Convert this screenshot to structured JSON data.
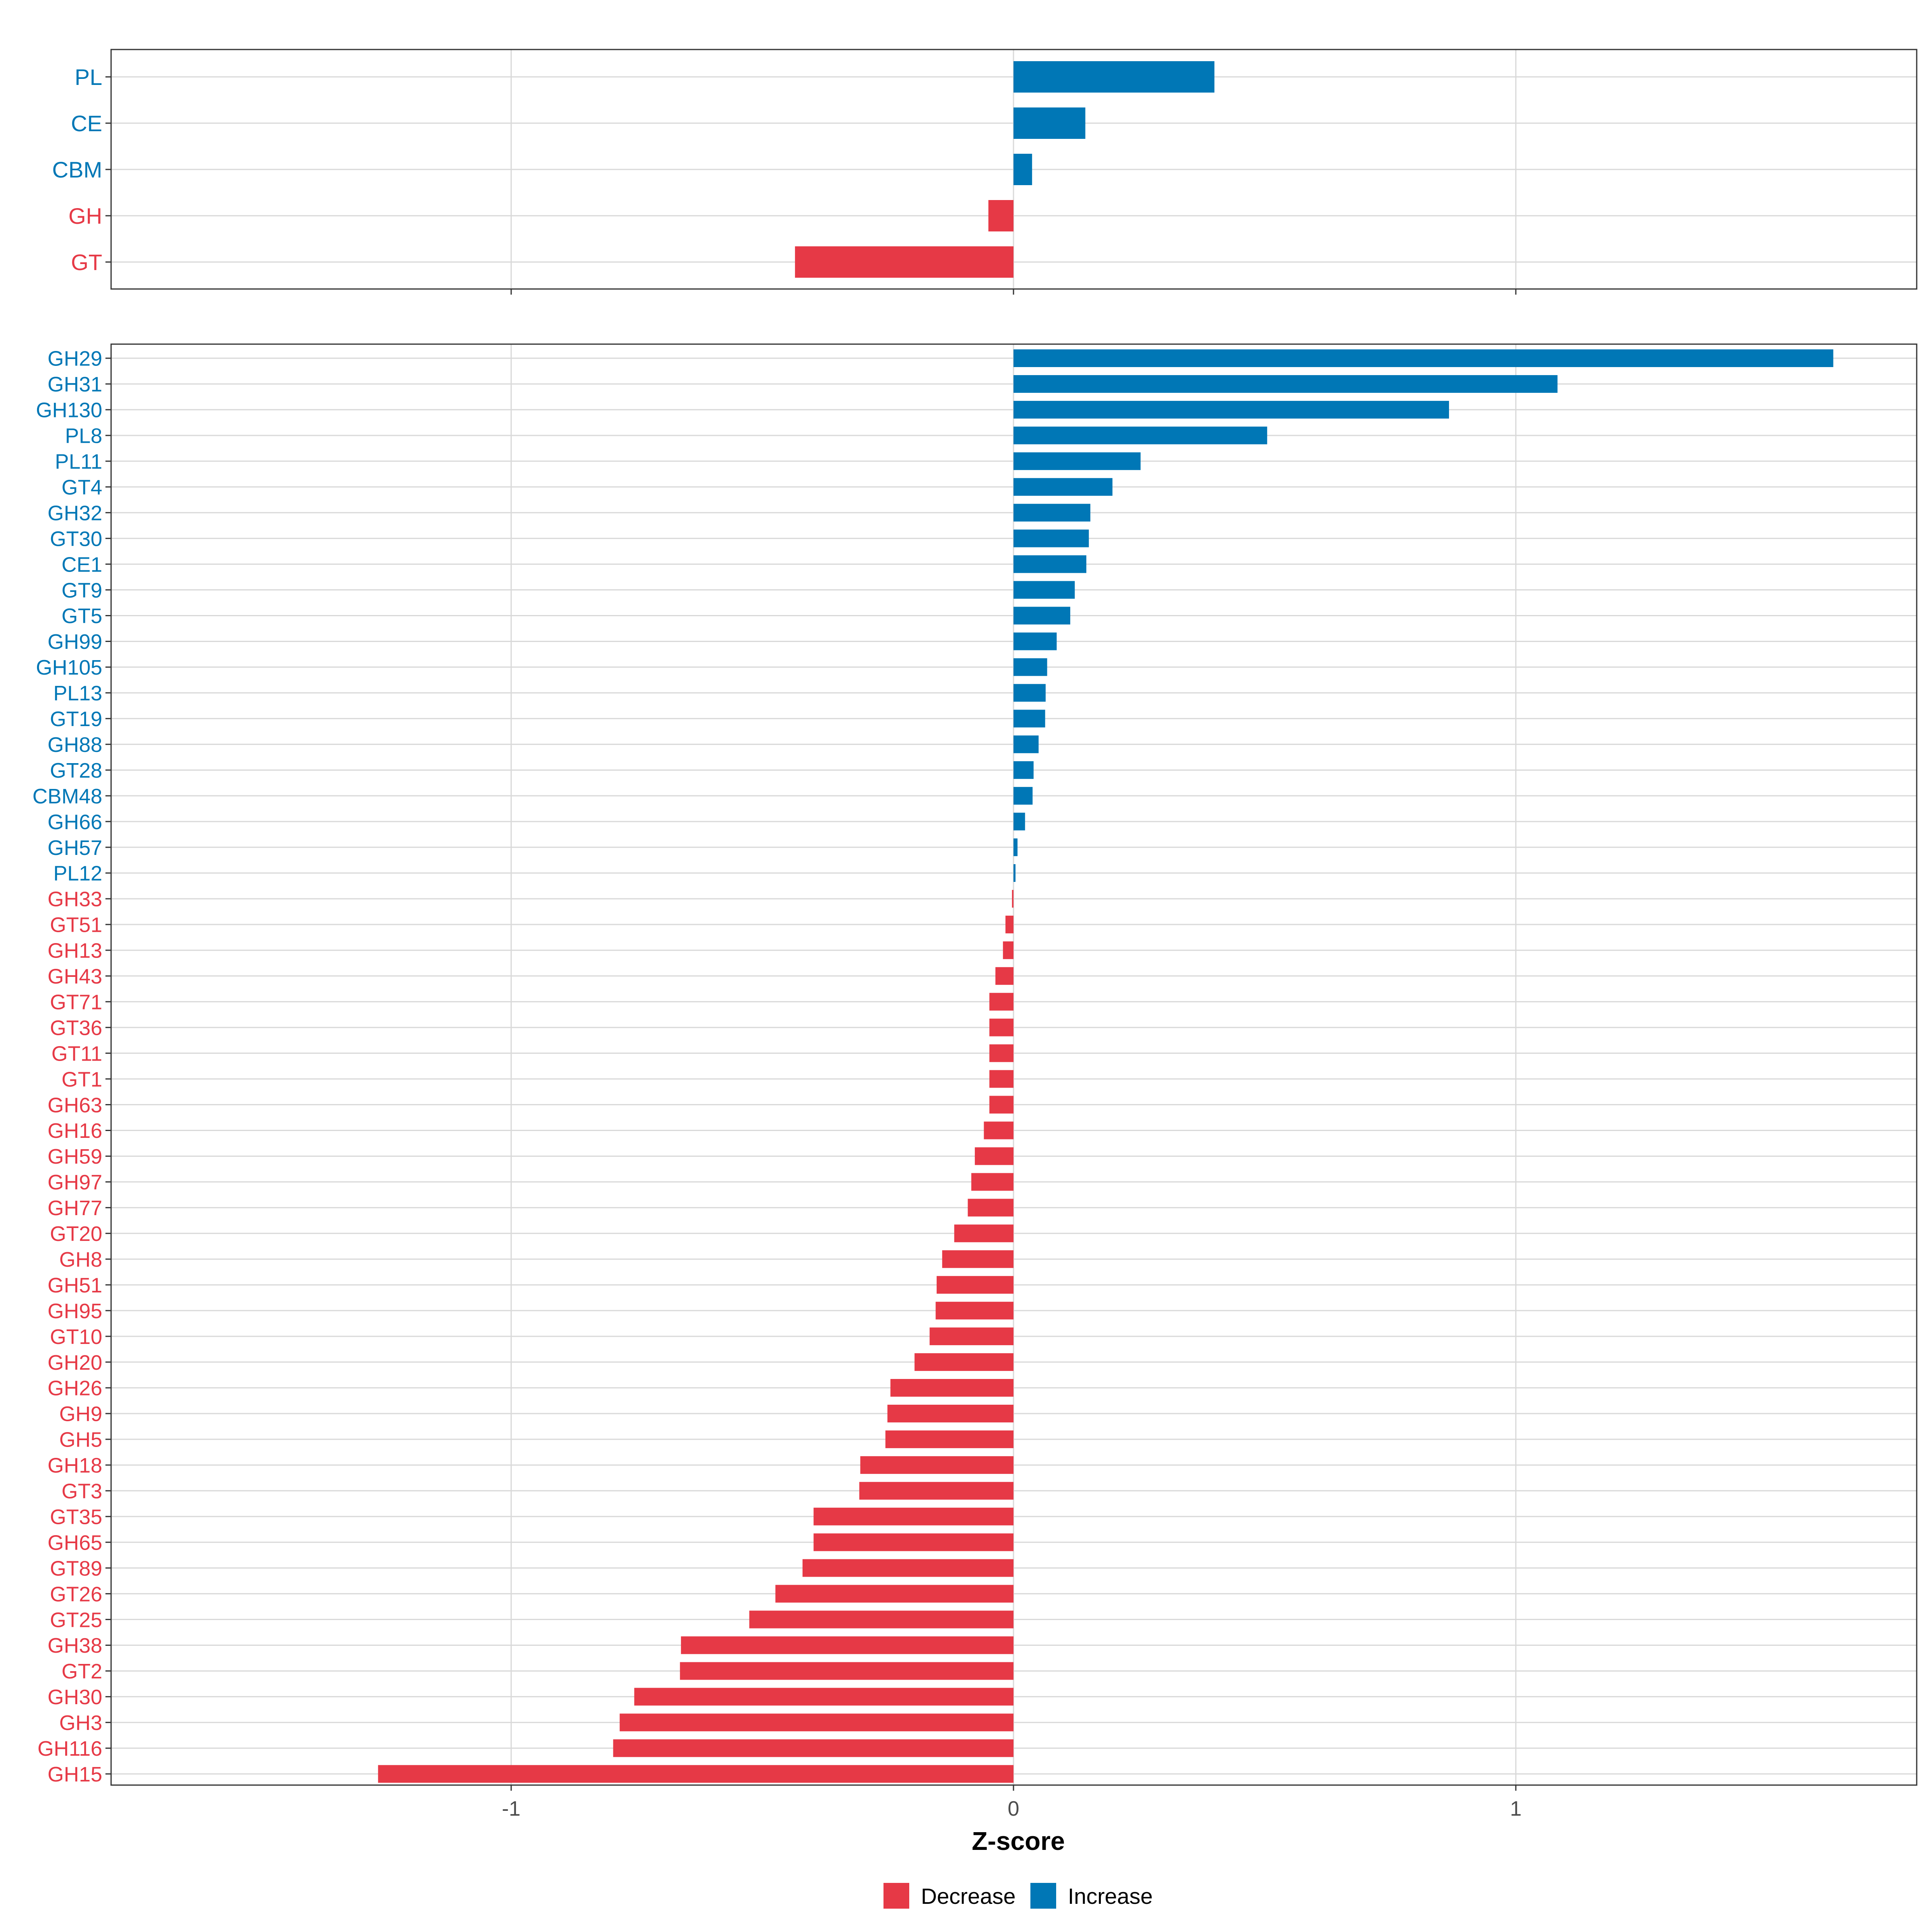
{
  "colors": {
    "decrease": "#E63946",
    "increase": "#0077B6",
    "grid": "#D9D9D9",
    "axis_text": "#4D4D4D",
    "panel_border": "#333333"
  },
  "chart_data": [
    {
      "type": "bar",
      "orientation": "horizontal",
      "panel": "top",
      "categories": [
        "PL",
        "CE",
        "CBM",
        "GH",
        "GT"
      ],
      "values": [
        0.4,
        0.143,
        0.037,
        -0.05,
        -0.435
      ],
      "groups": [
        "Increase",
        "Increase",
        "Increase",
        "Decrease",
        "Decrease"
      ],
      "xlim": [
        -1.8,
        1.8
      ],
      "xticks": [
        -1,
        0,
        1
      ],
      "grid": true
    },
    {
      "type": "bar",
      "orientation": "horizontal",
      "panel": "bottom",
      "categories": [
        "GH29",
        "GH31",
        "GH130",
        "PL8",
        "PL11",
        "GT4",
        "GH32",
        "GT30",
        "CE1",
        "GT9",
        "GT5",
        "GH99",
        "GH105",
        "PL13",
        "GT19",
        "GH88",
        "GT28",
        "CBM48",
        "GH66",
        "GH57",
        "PL12",
        "GH33",
        "GT51",
        "GH13",
        "GH43",
        "GT71",
        "GT36",
        "GT11",
        "GT1",
        "GH63",
        "GH16",
        "GH59",
        "GH97",
        "GH77",
        "GT20",
        "GH8",
        "GH51",
        "GH95",
        "GT10",
        "GH20",
        "GH26",
        "GH9",
        "GH5",
        "GH18",
        "GT3",
        "GT35",
        "GH65",
        "GT89",
        "GT26",
        "GT25",
        "GH38",
        "GT2",
        "GH30",
        "GH3",
        "GH116",
        "GH15"
      ],
      "values": [
        1.632,
        1.083,
        0.867,
        0.505,
        0.253,
        0.197,
        0.153,
        0.15,
        0.145,
        0.122,
        0.113,
        0.086,
        0.067,
        0.064,
        0.063,
        0.05,
        0.04,
        0.038,
        0.023,
        0.008,
        0.004,
        -0.003,
        -0.016,
        -0.021,
        -0.036,
        -0.048,
        -0.048,
        -0.048,
        -0.048,
        -0.048,
        -0.059,
        -0.077,
        -0.084,
        -0.091,
        -0.118,
        -0.142,
        -0.153,
        -0.155,
        -0.167,
        -0.197,
        -0.245,
        -0.251,
        -0.255,
        -0.305,
        -0.307,
        -0.398,
        -0.398,
        -0.42,
        -0.474,
        -0.526,
        -0.662,
        -0.664,
        -0.755,
        -0.784,
        -0.797,
        -1.265
      ],
      "groups": [
        "Increase",
        "Increase",
        "Increase",
        "Increase",
        "Increase",
        "Increase",
        "Increase",
        "Increase",
        "Increase",
        "Increase",
        "Increase",
        "Increase",
        "Increase",
        "Increase",
        "Increase",
        "Increase",
        "Increase",
        "Increase",
        "Increase",
        "Increase",
        "Increase",
        "Decrease",
        "Decrease",
        "Decrease",
        "Decrease",
        "Decrease",
        "Decrease",
        "Decrease",
        "Decrease",
        "Decrease",
        "Decrease",
        "Decrease",
        "Decrease",
        "Decrease",
        "Decrease",
        "Decrease",
        "Decrease",
        "Decrease",
        "Decrease",
        "Decrease",
        "Decrease",
        "Decrease",
        "Decrease",
        "Decrease",
        "Decrease",
        "Decrease",
        "Decrease",
        "Decrease",
        "Decrease",
        "Decrease",
        "Decrease",
        "Decrease",
        "Decrease",
        "Decrease",
        "Decrease",
        "Decrease"
      ],
      "xlim": [
        -1.8,
        1.8
      ],
      "xticks": [
        -1,
        0,
        1
      ],
      "xtick_labels": [
        "-1",
        "0",
        "1"
      ],
      "xlabel": "Z-score",
      "grid": true
    }
  ],
  "legend": {
    "placement": "bottom",
    "items": [
      {
        "label": "Decrease",
        "color": "#E63946"
      },
      {
        "label": "Increase",
        "color": "#0077B6"
      }
    ]
  }
}
